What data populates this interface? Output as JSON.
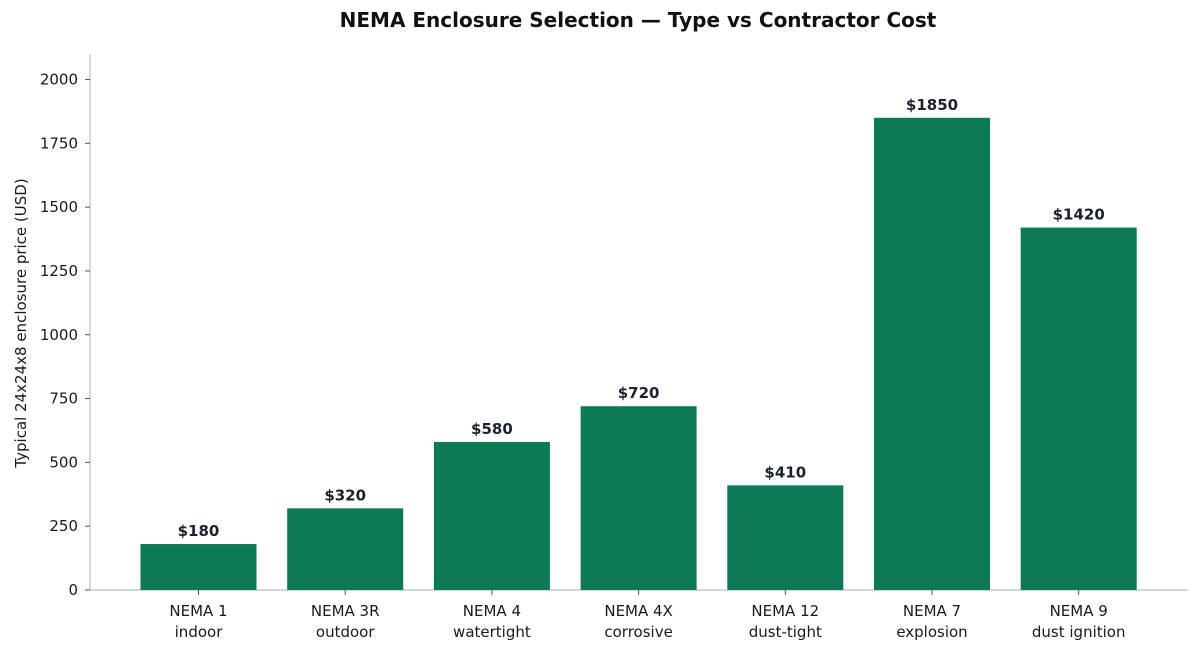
{
  "chart_data": {
    "type": "bar",
    "title": "NEMA Enclosure Selection — Type vs Contractor Cost",
    "xlabel": "",
    "ylabel": "Typical 24x24x8 enclosure price (USD)",
    "categories": [
      [
        "NEMA 1",
        "indoor"
      ],
      [
        "NEMA 3R",
        "outdoor"
      ],
      [
        "NEMA 4",
        "watertight"
      ],
      [
        "NEMA 4X",
        "corrosive"
      ],
      [
        "NEMA 12",
        "dust-tight"
      ],
      [
        "NEMA 7",
        "explosion"
      ],
      [
        "NEMA 9",
        "dust ignition"
      ]
    ],
    "values": [
      180,
      320,
      580,
      720,
      410,
      1850,
      1420
    ],
    "data_labels": [
      "$180",
      "$320",
      "$580",
      "$720",
      "$410",
      "$1850",
      "$1420"
    ],
    "ylim": [
      0,
      2100
    ],
    "yticks": [
      0,
      250,
      500,
      750,
      1000,
      1250,
      1500,
      1750,
      2000
    ],
    "grid": false,
    "colors": {
      "bar": "#0d7a55"
    }
  }
}
